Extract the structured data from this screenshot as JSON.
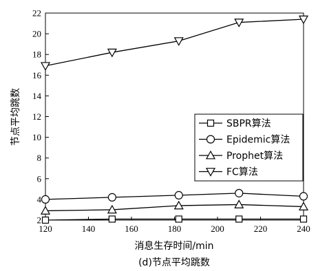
{
  "chart_data": {
    "type": "line",
    "title": "",
    "caption": "(d)节点平均跳数",
    "xlabel": "消息生存时间/min",
    "ylabel": "节点平均跳数",
    "xlim": [
      120,
      240
    ],
    "ylim": [
      2,
      22
    ],
    "xticks": [
      120,
      140,
      160,
      180,
      200,
      220,
      240
    ],
    "yticks": [
      2,
      4,
      6,
      8,
      10,
      12,
      14,
      16,
      18,
      20,
      22
    ],
    "x": [
      120,
      151,
      182,
      210,
      240
    ],
    "series": [
      {
        "name": "SBPR算法",
        "marker": "square",
        "values": [
          2.0,
          2.1,
          2.1,
          2.1,
          2.1
        ]
      },
      {
        "name": "Epidemic算法",
        "marker": "circle",
        "values": [
          4.0,
          4.2,
          4.4,
          4.6,
          4.3
        ]
      },
      {
        "name": "Prophet算法",
        "marker": "triangle-up",
        "values": [
          2.9,
          3.0,
          3.4,
          3.5,
          3.3
        ]
      },
      {
        "name": "FC算法",
        "marker": "triangle-down",
        "values": [
          16.9,
          18.2,
          19.3,
          21.1,
          21.4
        ]
      }
    ],
    "legend_position": "right-center",
    "grid": false
  }
}
